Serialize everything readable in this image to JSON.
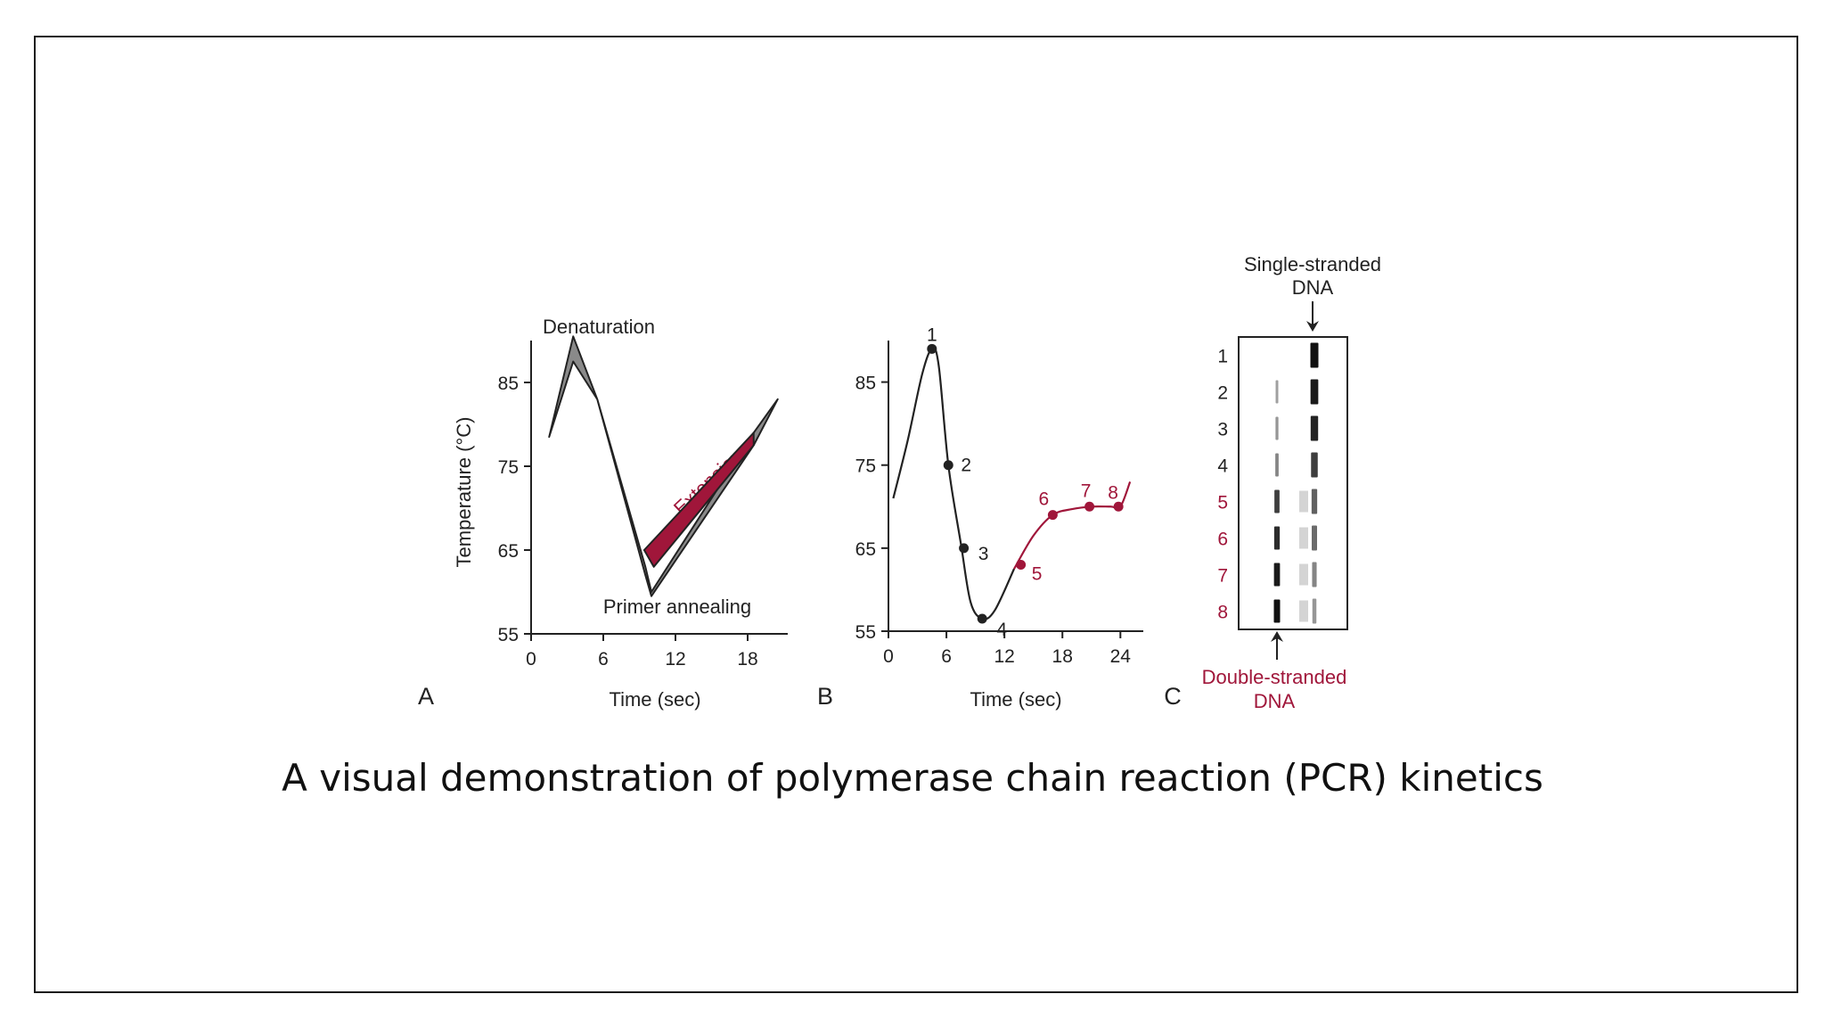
{
  "caption": "A visual demonstration of polymerase chain reaction (PCR) kinetics",
  "colors": {
    "accent": "#a0163a",
    "ink": "#222222",
    "gray_band": "#8a8a8a"
  },
  "chart_data": [
    {
      "panel_letter": "A",
      "type": "area",
      "xlabel": "Time (sec)",
      "ylabel": "Temperature (°C)",
      "xlim": [
        0,
        20
      ],
      "ylim": [
        55,
        90
      ],
      "xticks": [
        0,
        6,
        12,
        18
      ],
      "yticks": [
        55,
        65,
        75,
        85
      ],
      "annotations": [
        "Denaturation",
        "Primer annealing",
        "Extension"
      ],
      "gray_band": {
        "upper": [
          [
            1.5,
            78.5
          ],
          [
            3.5,
            90.5
          ],
          [
            5.5,
            83
          ],
          [
            9.5,
            63
          ],
          [
            10,
            60
          ],
          [
            18.5,
            79
          ],
          [
            20.5,
            83
          ]
        ],
        "lower": [
          [
            1.5,
            78.5
          ],
          [
            3.5,
            87.5
          ],
          [
            5.5,
            83
          ],
          [
            9.5,
            62
          ],
          [
            10,
            59.5
          ],
          [
            18.5,
            77.5
          ],
          [
            20.5,
            83
          ]
        ]
      },
      "extension_band": {
        "upper": [
          [
            9.4,
            65
          ],
          [
            18.5,
            79
          ]
        ],
        "lower": [
          [
            10.2,
            63
          ],
          [
            18.5,
            77.5
          ]
        ]
      }
    },
    {
      "panel_letter": "B",
      "type": "line",
      "xlabel": "Time (sec)",
      "ylabel": "",
      "xlim": [
        0,
        26
      ],
      "ylim": [
        55,
        90
      ],
      "xticks": [
        0,
        6,
        12,
        18,
        24
      ],
      "yticks": [
        55,
        65,
        75,
        85
      ],
      "series": [
        {
          "values": [
            [
              0.5,
              71
            ],
            [
              2,
              78
            ],
            [
              3.5,
              86
            ],
            [
              4.5,
              89
            ],
            [
              5.2,
              87
            ],
            [
              6.2,
              75
            ],
            [
              7.5,
              65.5
            ],
            [
              8.5,
              58.5
            ],
            [
              9.7,
              56.5
            ],
            [
              11,
              57.5
            ],
            [
              13,
              62.5
            ]
          ]
        },
        {
          "values": [
            [
              13,
              62.5
            ],
            [
              15,
              66.5
            ],
            [
              17,
              69
            ],
            [
              19,
              69.7
            ],
            [
              21,
              70
            ],
            [
              23,
              70
            ],
            [
              24,
              70
            ],
            [
              25,
              73
            ]
          ]
        }
      ],
      "points": [
        {
          "label": "1",
          "x": 4.5,
          "y": 89
        },
        {
          "label": "2",
          "x": 6.2,
          "y": 75
        },
        {
          "label": "3",
          "x": 7.8,
          "y": 65
        },
        {
          "label": "4",
          "x": 9.7,
          "y": 56.5
        },
        {
          "label": "5",
          "x": 13.7,
          "y": 63
        },
        {
          "label": "6",
          "x": 17,
          "y": 69
        },
        {
          "label": "7",
          "x": 20.8,
          "y": 70
        },
        {
          "label": "8",
          "x": 23.8,
          "y": 70
        }
      ]
    },
    {
      "panel_letter": "C",
      "type": "table",
      "top_label": [
        "Single-stranded",
        "DNA"
      ],
      "bottom_label": [
        "Double-stranded",
        "DNA"
      ],
      "lanes": [
        "1",
        "2",
        "3",
        "4",
        "5",
        "6",
        "7",
        "8"
      ],
      "ds_band_intensity": [
        0.0,
        0.2,
        0.25,
        0.35,
        0.75,
        0.85,
        0.95,
        1.0
      ],
      "ss_band_intensity": [
        1.0,
        0.95,
        0.9,
        0.75,
        0.55,
        0.5,
        0.35,
        0.25
      ]
    }
  ]
}
